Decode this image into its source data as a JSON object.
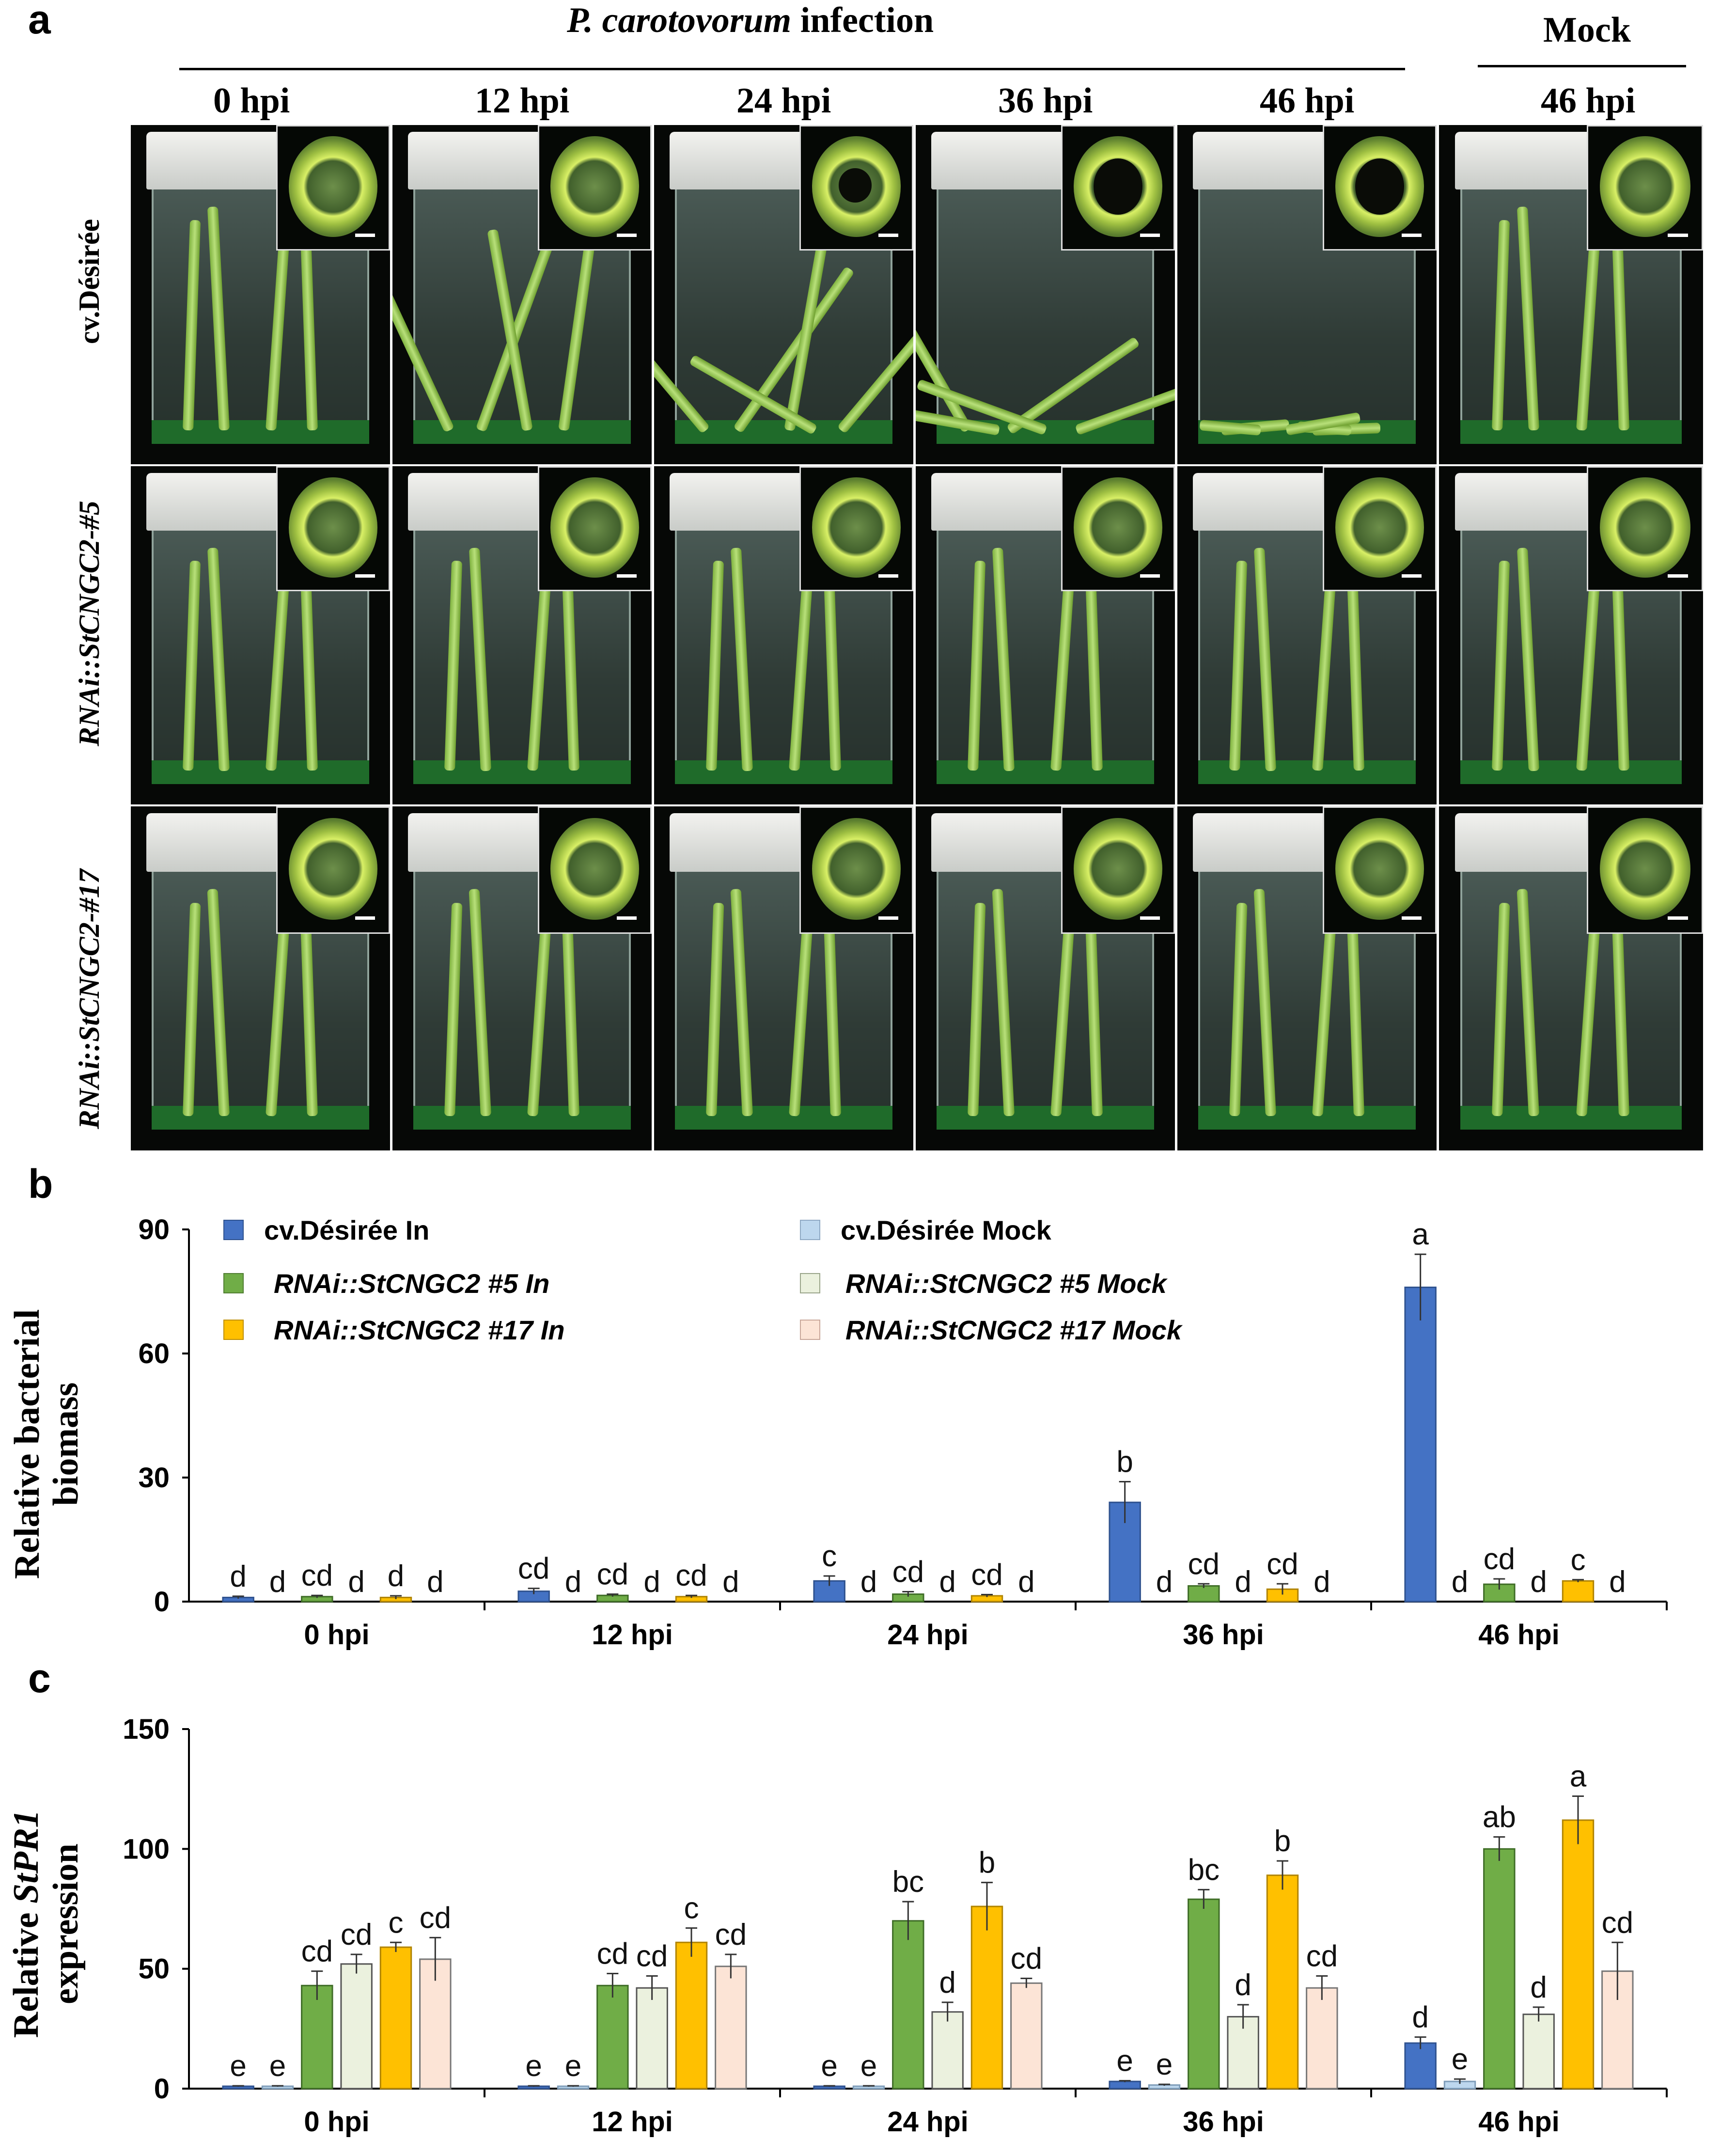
{
  "panel_a": {
    "letter": "a",
    "infection_prefix": "P. carotovorum",
    "infection_suffix": " infection",
    "mock": "Mock",
    "columns": [
      "0 hpi",
      "12 hpi",
      "24 hpi",
      "36 hpi",
      "46 hpi",
      "46 hpi"
    ],
    "rows": [
      "cv.Désirée",
      "RNAi::StCNGC2-#5",
      "RNAi::StCNGC2-#17"
    ]
  },
  "chart_data": [
    {
      "type": "bar",
      "panel": "b",
      "ylabel_line1": "Relative bacterial",
      "ylabel_line2": "biomass",
      "ylim": [
        0,
        90
      ],
      "yticks": [
        "0",
        "30",
        "60",
        "90"
      ],
      "categories": [
        "0 hpi",
        "12 hpi",
        "24 hpi",
        "36 hpi",
        "46 hpi"
      ],
      "legend": [
        "cv.Désirée In",
        "cv.Désirée Mock",
        "RNAi::StCNGC2 #5 In",
        "RNAi::StCNGC2 #5  Mock",
        "RNAi::StCNGC2 #17 In",
        "RNAi::StCNGC2 #17 Mock"
      ],
      "series": [
        {
          "name": "cv.Désirée In",
          "color": "#4472c4",
          "values": [
            1,
            2.5,
            5,
            24,
            76
          ],
          "errors": [
            0.3,
            0.7,
            1.2,
            5,
            8
          ],
          "letters": [
            "d",
            "cd",
            "c",
            "b",
            "a"
          ]
        },
        {
          "name": "cv.Désirée Mock",
          "color": "#bdd7ee",
          "values": [
            0,
            0,
            0,
            0,
            0
          ],
          "errors": [
            0,
            0,
            0,
            0,
            0
          ],
          "letters": [
            "d",
            "d",
            "d",
            "d",
            "d"
          ]
        },
        {
          "name": "RNAi::StCNGC2 #5 In",
          "color": "#70ad47",
          "values": [
            1.2,
            1.5,
            1.8,
            3.8,
            4.2
          ],
          "errors": [
            0.3,
            0.3,
            0.6,
            0.5,
            1.3
          ],
          "letters": [
            "cd",
            "cd",
            "cd",
            "cd",
            "cd"
          ]
        },
        {
          "name": "RNAi::StCNGC2 #5  Mock",
          "color": "#ebf1de",
          "values": [
            0,
            0,
            0,
            0,
            0
          ],
          "errors": [
            0,
            0,
            0,
            0,
            0
          ],
          "letters": [
            "d",
            "d",
            "d",
            "d",
            "d"
          ]
        },
        {
          "name": "RNAi::StCNGC2 #17 In",
          "color": "#ffc000",
          "values": [
            1,
            1.2,
            1.4,
            3,
            5
          ],
          "errors": [
            0.4,
            0.3,
            0.3,
            1.3,
            0.3
          ],
          "letters": [
            "d",
            "cd",
            "cd",
            "cd",
            "c"
          ]
        },
        {
          "name": "RNAi::StCNGC2 #17 Mock",
          "color": "#fce4d6",
          "values": [
            0,
            0,
            0,
            0,
            0
          ],
          "errors": [
            0,
            0,
            0,
            0,
            0
          ],
          "letters": [
            "d",
            "d",
            "d",
            "d",
            "d"
          ]
        }
      ]
    },
    {
      "type": "bar",
      "panel": "c",
      "ylabel_prefix": "Relative ",
      "ylabel_gene": "StPR1",
      "ylabel_line2": "expression",
      "ylim": [
        0,
        150
      ],
      "yticks": [
        "0",
        "50",
        "100",
        "150"
      ],
      "categories": [
        "0 hpi",
        "12 hpi",
        "24 hpi",
        "36 hpi",
        "46 hpi"
      ],
      "series": [
        {
          "name": "cv.Désirée In",
          "color": "#4472c4",
          "values": [
            1,
            1,
            1,
            3,
            19
          ],
          "errors": [
            0.2,
            0.2,
            0.2,
            0.3,
            2.5
          ],
          "letters": [
            "e",
            "e",
            "e",
            "e",
            "d"
          ]
        },
        {
          "name": "cv.Désirée Mock",
          "color": "#bdd7ee",
          "values": [
            1,
            1,
            1,
            1.5,
            3
          ],
          "errors": [
            0.2,
            0.2,
            0.2,
            0.3,
            1
          ],
          "letters": [
            "e",
            "e",
            "e",
            "e",
            "e"
          ]
        },
        {
          "name": "RNAi::StCNGC2 #5 In",
          "color": "#70ad47",
          "values": [
            43,
            43,
            70,
            79,
            100
          ],
          "errors": [
            6,
            5,
            8,
            4,
            5
          ],
          "letters": [
            "cd",
            "cd",
            "bc",
            "bc",
            "ab"
          ]
        },
        {
          "name": "RNAi::StCNGC2 #5  Mock",
          "color": "#ebf1de",
          "values": [
            52,
            42,
            32,
            30,
            31
          ],
          "errors": [
            4,
            5,
            4,
            5,
            3
          ],
          "letters": [
            "cd",
            "cd",
            "d",
            "d",
            "d"
          ]
        },
        {
          "name": "RNAi::StCNGC2 #17 In",
          "color": "#ffc000",
          "values": [
            59,
            61,
            76,
            89,
            112
          ],
          "errors": [
            2,
            6,
            10,
            6,
            10
          ],
          "letters": [
            "c",
            "c",
            "b",
            "b",
            "a"
          ]
        },
        {
          "name": "RNAi::StCNGC2 #17 Mock",
          "color": "#fce4d6",
          "values": [
            54,
            51,
            44,
            42,
            49
          ],
          "errors": [
            9,
            5,
            2,
            5,
            12
          ],
          "letters": [
            "cd",
            "cd",
            "cd",
            "cd",
            "cd"
          ]
        }
      ]
    }
  ]
}
